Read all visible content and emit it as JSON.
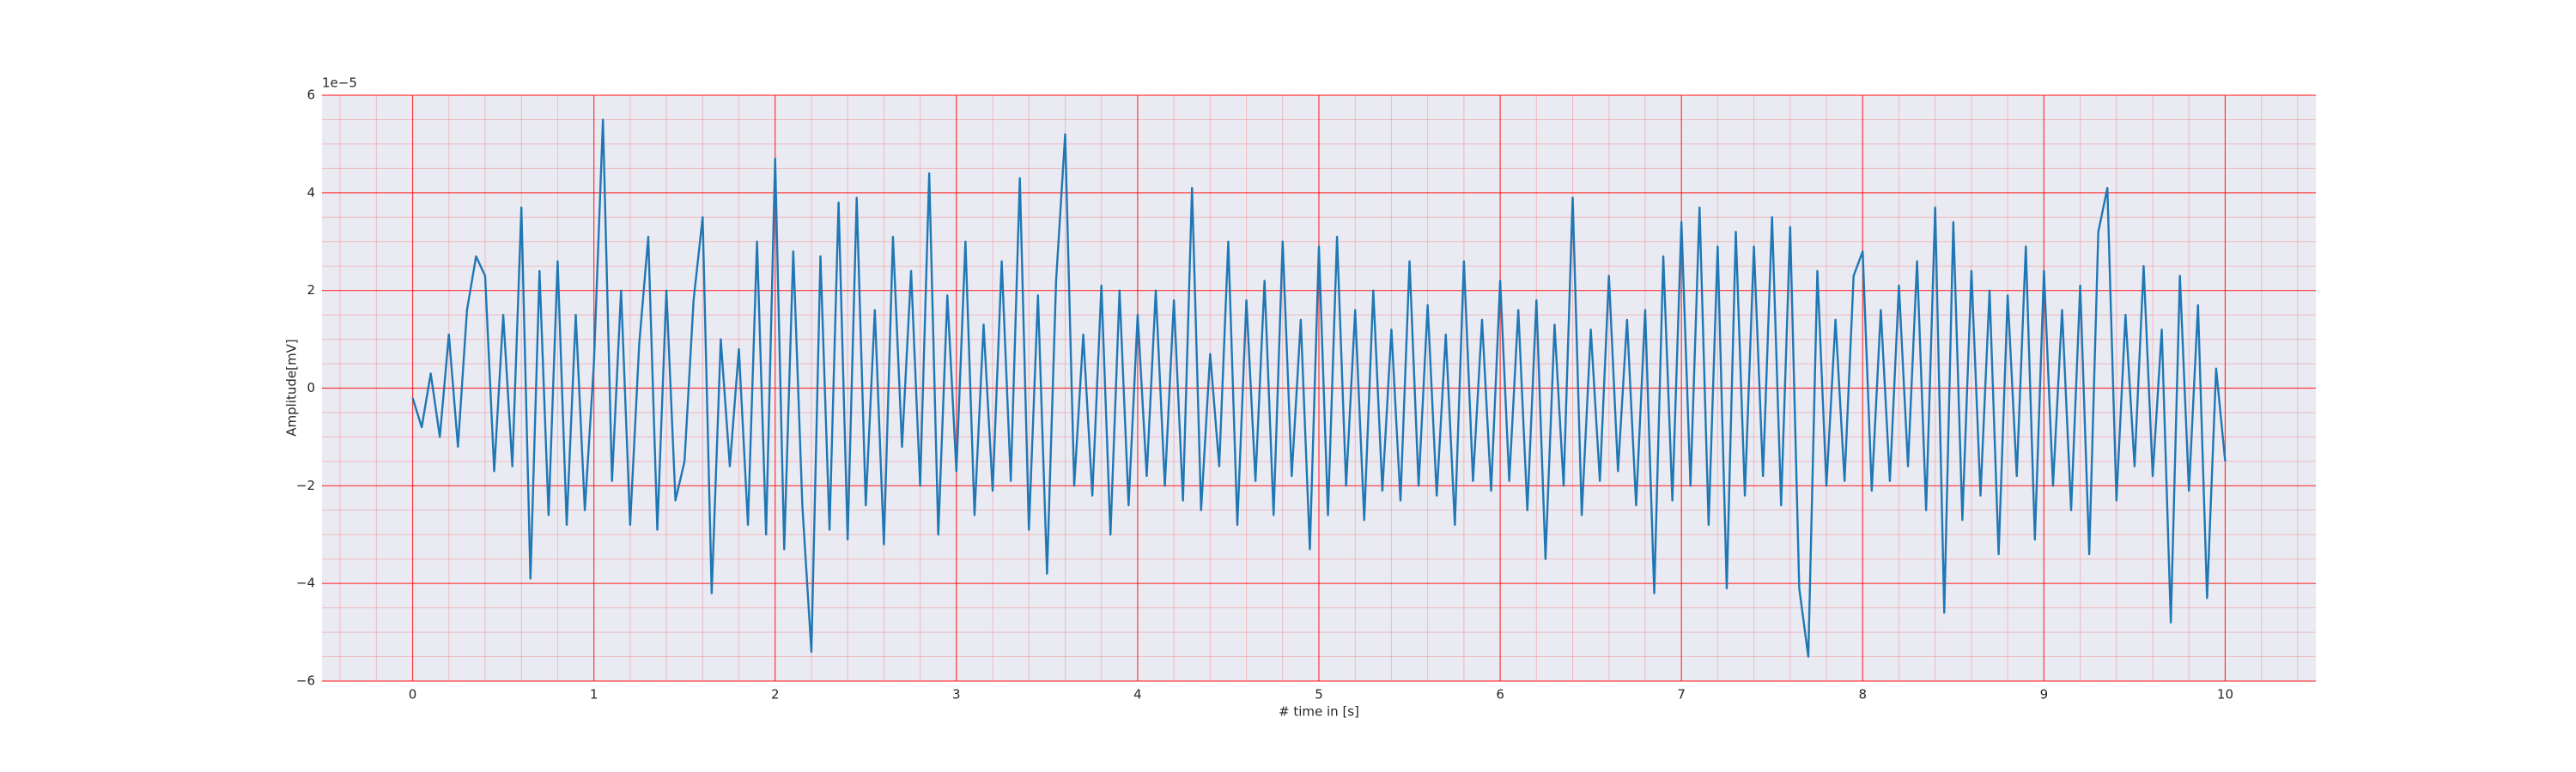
{
  "chart_data": {
    "type": "line",
    "xlabel": "# time in [s]",
    "ylabel": "Amplitude[mV]",
    "y_offset_label": "1e−5",
    "x": [
      0,
      0.05,
      0.1,
      0.15,
      0.2,
      0.25,
      0.3,
      0.35,
      0.4,
      0.45,
      0.5,
      0.55,
      0.6,
      0.65,
      0.7,
      0.75,
      0.8,
      0.85,
      0.9,
      0.95,
      1,
      1.05,
      1.1,
      1.15,
      1.2,
      1.25,
      1.3,
      1.35,
      1.4,
      1.45,
      1.5,
      1.55,
      1.6,
      1.65,
      1.7,
      1.75,
      1.8,
      1.85,
      1.9,
      1.95,
      2,
      2.05,
      2.1,
      2.15,
      2.2,
      2.25,
      2.3,
      2.35,
      2.4,
      2.45,
      2.5,
      2.55,
      2.6,
      2.65,
      2.7,
      2.75,
      2.8,
      2.85,
      2.9,
      2.95,
      3,
      3.05,
      3.1,
      3.15,
      3.2,
      3.25,
      3.3,
      3.35,
      3.4,
      3.45,
      3.5,
      3.55,
      3.6,
      3.65,
      3.7,
      3.75,
      3.8,
      3.85,
      3.9,
      3.95,
      4,
      4.05,
      4.1,
      4.15,
      4.2,
      4.25,
      4.3,
      4.35,
      4.4,
      4.45,
      4.5,
      4.55,
      4.6,
      4.65,
      4.7,
      4.75,
      4.8,
      4.85,
      4.9,
      4.95,
      5,
      5.05,
      5.1,
      5.15,
      5.2,
      5.25,
      5.3,
      5.35,
      5.4,
      5.45,
      5.5,
      5.55,
      5.6,
      5.65,
      5.7,
      5.75,
      5.8,
      5.85,
      5.9,
      5.95,
      6,
      6.05,
      6.1,
      6.15,
      6.2,
      6.25,
      6.3,
      6.35,
      6.4,
      6.45,
      6.5,
      6.55,
      6.6,
      6.65,
      6.7,
      6.75,
      6.8,
      6.85,
      6.9,
      6.95,
      7,
      7.05,
      7.1,
      7.15,
      7.2,
      7.25,
      7.3,
      7.35,
      7.4,
      7.45,
      7.5,
      7.55,
      7.6,
      7.65,
      7.7,
      7.75,
      7.8,
      7.85,
      7.9,
      7.95,
      8,
      8.05,
      8.1,
      8.15,
      8.2,
      8.25,
      8.3,
      8.35,
      8.4,
      8.45,
      8.5,
      8.55,
      8.6,
      8.65,
      8.7,
      8.75,
      8.8,
      8.85,
      8.9,
      8.95,
      9,
      9.05,
      9.1,
      9.15,
      9.2,
      9.25,
      9.3,
      9.35,
      9.4,
      9.45,
      9.5,
      9.55,
      9.6,
      9.65,
      9.7,
      9.75,
      9.8,
      9.85,
      9.9,
      9.95,
      10
    ],
    "series": [
      {
        "color": "#1f77b4",
        "values": [
          -0.2,
          -0.8,
          0.3,
          -1.0,
          1.1,
          -1.2,
          1.6,
          2.7,
          2.3,
          -1.7,
          1.5,
          -1.6,
          3.7,
          -3.9,
          2.4,
          -2.6,
          2.6,
          -2.8,
          1.5,
          -2.5,
          0.5,
          5.5,
          -1.9,
          2.0,
          -2.8,
          0.9,
          3.1,
          -2.9,
          2.0,
          -2.3,
          -1.5,
          1.8,
          3.5,
          -4.2,
          1.0,
          -1.6,
          0.8,
          -2.8,
          3.0,
          -3.0,
          4.7,
          -3.3,
          2.8,
          -2.4,
          -5.4,
          2.7,
          -2.9,
          3.8,
          -3.1,
          3.9,
          -2.4,
          1.6,
          -3.2,
          3.1,
          -1.2,
          2.4,
          -2.0,
          4.4,
          -3.0,
          1.9,
          -1.7,
          3.0,
          -2.6,
          1.3,
          -2.1,
          2.6,
          -1.9,
          4.3,
          -2.9,
          1.9,
          -3.8,
          2.2,
          5.2,
          -2.0,
          1.1,
          -2.2,
          2.1,
          -3.0,
          2.0,
          -2.4,
          1.5,
          -1.8,
          2.0,
          -2.0,
          1.8,
          -2.3,
          4.1,
          -2.5,
          0.7,
          -1.6,
          3.0,
          -2.8,
          1.8,
          -1.9,
          2.2,
          -2.6,
          3.0,
          -1.8,
          1.4,
          -3.3,
          2.9,
          -2.6,
          3.1,
          -2.0,
          1.6,
          -2.7,
          2.0,
          -2.1,
          1.2,
          -2.3,
          2.6,
          -2.0,
          1.7,
          -2.2,
          1.1,
          -2.8,
          2.6,
          -1.9,
          1.4,
          -2.1,
          2.2,
          -1.9,
          1.6,
          -2.5,
          1.8,
          -3.5,
          1.3,
          -2.0,
          3.9,
          -2.6,
          1.2,
          -1.9,
          2.3,
          -1.7,
          1.4,
          -2.4,
          1.6,
          -4.2,
          2.7,
          -2.3,
          3.4,
          -2.0,
          3.7,
          -2.8,
          2.9,
          -4.1,
          3.2,
          -2.2,
          2.9,
          -1.8,
          3.5,
          -2.4,
          3.3,
          -4.1,
          -5.5,
          2.4,
          -2.0,
          1.4,
          -1.9,
          2.3,
          2.8,
          -2.1,
          1.6,
          -1.9,
          2.1,
          -1.6,
          2.6,
          -2.5,
          3.7,
          -4.6,
          3.4,
          -2.7,
          2.4,
          -2.2,
          2.0,
          -3.4,
          1.9,
          -1.8,
          2.9,
          -3.1,
          2.4,
          -2.0,
          1.6,
          -2.5,
          2.1,
          -3.4,
          3.2,
          4.1,
          -2.3,
          1.5,
          -1.6,
          2.5,
          -1.8,
          1.2,
          -4.8,
          2.3,
          -2.1,
          1.7,
          -4.3,
          0.4,
          -1.5
        ]
      }
    ],
    "xlim": [
      -0.5,
      10.5
    ],
    "ylim": [
      -6,
      6
    ],
    "xticks": [
      0,
      1,
      2,
      3,
      4,
      5,
      6,
      7,
      8,
      9,
      10
    ],
    "yticks": [
      {
        "value": -6,
        "label": "−6"
      },
      {
        "value": -4,
        "label": "−4"
      },
      {
        "value": -2,
        "label": "−2"
      },
      0,
      2,
      4,
      6
    ],
    "grid": true,
    "grid_color": "#ff0000",
    "minor_grid": true,
    "minor_divisions": {
      "x": 5,
      "y": 4
    },
    "background": "#eaeaf2"
  }
}
